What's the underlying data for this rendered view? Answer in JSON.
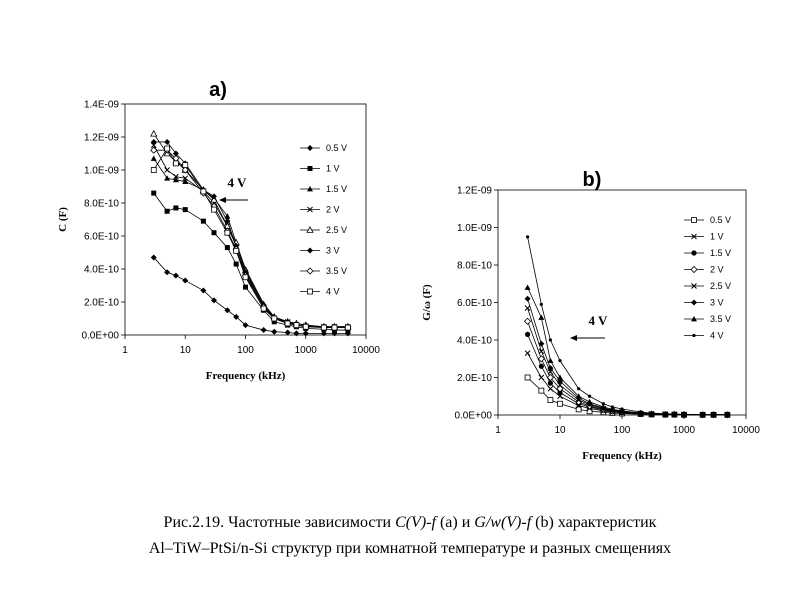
{
  "chart_data": [
    {
      "type": "line",
      "panel_label": "a)",
      "xlabel": "Frequency (kHz)",
      "ylabel": "C (F)",
      "x_scale": "log",
      "xlim": [
        1,
        10000
      ],
      "ylim": [
        0,
        1.4e-09
      ],
      "x_ticks": [
        "1",
        "10",
        "100",
        "1000",
        "10000"
      ],
      "y_ticks": [
        "0.0E+00",
        "2.0E-10",
        "4.0E-10",
        "6.0E-10",
        "8.0E-10",
        "1.0E-09",
        "1.2E-09",
        "1.4E-09"
      ],
      "annotation": "4 V",
      "legend_position": "right",
      "x": [
        3,
        5,
        7,
        10,
        20,
        30,
        50,
        70,
        100,
        200,
        300,
        500,
        700,
        1000,
        2000,
        3000,
        5000
      ],
      "series": [
        {
          "name": "0.5 V",
          "marker": "diamond-filled",
          "values": [
            4.7e-10,
            3.8e-10,
            3.6e-10,
            3.3e-10,
            2.7e-10,
            2.1e-10,
            1.5e-10,
            1.1e-10,
            6e-11,
            3e-11,
            2e-11,
            1.5e-11,
            1e-11,
            1e-11,
            1e-11,
            1e-11,
            1e-11
          ]
        },
        {
          "name": "1 V",
          "marker": "square-filled",
          "values": [
            8.6e-10,
            7.5e-10,
            7.7e-10,
            7.6e-10,
            6.9e-10,
            6.2e-10,
            5.3e-10,
            4.3e-10,
            2.9e-10,
            1.5e-10,
            8e-11,
            6e-11,
            5e-11,
            4e-11,
            3.5e-11,
            3e-11,
            3e-11
          ]
        },
        {
          "name": "1.5 V",
          "marker": "triangle-filled",
          "values": [
            1.07e-09,
            9.5e-10,
            9.4e-10,
            9.3e-10,
            8.8e-10,
            8.3e-10,
            7.2e-10,
            5.6e-10,
            4e-10,
            1.9e-10,
            1.1e-10,
            8e-11,
            7e-11,
            6e-11,
            5e-11,
            5e-11,
            5e-11
          ]
        },
        {
          "name": "2 V",
          "marker": "x",
          "values": [
            1.15e-09,
            1e-09,
            9.6e-10,
            9.5e-10,
            8.7e-10,
            8e-10,
            6.6e-10,
            5.4e-10,
            3.7e-10,
            1.7e-10,
            1e-10,
            8e-11,
            6e-11,
            5.5e-11,
            5e-11,
            5e-11,
            5e-11
          ]
        },
        {
          "name": "2.5 V",
          "marker": "triangle-open",
          "values": [
            1.22e-09,
            1.1e-09,
            1.05e-09,
            1e-09,
            8.8e-10,
            8.2e-10,
            6.6e-10,
            5.6e-10,
            3.9e-10,
            1.8e-10,
            1.1e-10,
            8e-11,
            7e-11,
            6e-11,
            5e-11,
            5e-11,
            5e-11
          ]
        },
        {
          "name": "3 V",
          "marker": "diamond-filled",
          "values": [
            1.17e-09,
            1.17e-09,
            1.1e-09,
            1.04e-09,
            8.8e-10,
            8.4e-10,
            6.9e-10,
            5.4e-10,
            3.8e-10,
            1.8e-10,
            1e-10,
            8e-11,
            6e-11,
            5.5e-11,
            5e-11,
            5e-11,
            5e-11
          ]
        },
        {
          "name": "3.5 V",
          "marker": "diamond-open",
          "values": [
            1.12e-09,
            1.12e-09,
            1.07e-09,
            1e-09,
            8.6e-10,
            7.8e-10,
            6.3e-10,
            5.2e-10,
            3.6e-10,
            1.7e-10,
            1e-10,
            7e-11,
            6e-11,
            5e-11,
            5e-11,
            5e-11,
            5e-11
          ]
        },
        {
          "name": "4 V",
          "marker": "square-open",
          "values": [
            1e-09,
            1.13e-09,
            1.04e-09,
            1.03e-09,
            8.7e-10,
            7.6e-10,
            6.2e-10,
            5.1e-10,
            3.5e-10,
            1.6e-10,
            1e-10,
            7e-11,
            6e-11,
            5e-11,
            4.5e-11,
            4.5e-11,
            4.5e-11
          ]
        }
      ]
    },
    {
      "type": "line",
      "panel_label": "b)",
      "xlabel": "Frequency (kHz)",
      "ylabel": "G/ω (F)",
      "x_scale": "log",
      "xlim": [
        1,
        10000
      ],
      "ylim": [
        0,
        1.2e-09
      ],
      "x_ticks": [
        "1",
        "10",
        "100",
        "1000",
        "10000"
      ],
      "y_ticks": [
        "0.0E+00",
        "2.0E-10",
        "4.0E-10",
        "6.0E-10",
        "8.0E-10",
        "1.0E-09",
        "1.2E-09"
      ],
      "annotation": "4 V",
      "legend_position": "right",
      "x": [
        3,
        5,
        7,
        10,
        20,
        30,
        50,
        70,
        100,
        200,
        300,
        500,
        700,
        1000,
        2000,
        3000,
        5000
      ],
      "series": [
        {
          "name": "0.5 V",
          "marker": "square-open",
          "values": [
            2e-10,
            1.3e-10,
            8e-11,
            6e-11,
            3e-11,
            2e-11,
            1.5e-11,
            1e-11,
            8e-12,
            5e-12,
            3e-12,
            2e-12,
            2e-12,
            1e-12,
            1e-12,
            1e-12,
            1e-12
          ]
        },
        {
          "name": "1 V",
          "marker": "x",
          "values": [
            3.3e-10,
            2e-10,
            1.4e-10,
            1e-10,
            5e-11,
            3.5e-11,
            2.2e-11,
            1.6e-11,
            1.2e-11,
            6e-12,
            4e-12,
            3e-12,
            2e-12,
            2e-12,
            1e-12,
            1e-12,
            1e-12
          ]
        },
        {
          "name": "1.5 V",
          "marker": "circle-filled",
          "values": [
            4.3e-10,
            2.6e-10,
            1.7e-10,
            1.2e-10,
            6e-11,
            4.3e-11,
            2.6e-11,
            1.8e-11,
            1.3e-11,
            7e-12,
            5e-12,
            3e-12,
            2e-12,
            2e-12,
            1e-12,
            1e-12,
            1e-12
          ]
        },
        {
          "name": "2 V",
          "marker": "diamond-open",
          "values": [
            5e-10,
            3e-10,
            2e-10,
            1.4e-10,
            7e-11,
            4.8e-11,
            3e-11,
            2e-11,
            1.5e-11,
            8e-12,
            5e-12,
            3e-12,
            3e-12,
            2e-12,
            1e-12,
            1e-12,
            1e-12
          ]
        },
        {
          "name": "2.5 V",
          "marker": "x",
          "values": [
            5.7e-10,
            3.4e-10,
            2.3e-10,
            1.6e-10,
            8e-11,
            5.5e-11,
            3.4e-11,
            2.3e-11,
            1.7e-11,
            9e-12,
            6e-12,
            4e-12,
            3e-12,
            2e-12,
            1e-12,
            1e-12,
            1e-12
          ]
        },
        {
          "name": "3 V",
          "marker": "diamond-filled",
          "values": [
            6.2e-10,
            3.8e-10,
            2.5e-10,
            1.8e-10,
            9e-11,
            6e-11,
            3.7e-11,
            2.6e-11,
            1.9e-11,
            1e-11,
            6e-12,
            4e-12,
            3e-12,
            2e-12,
            1e-12,
            1e-12,
            1e-12
          ]
        },
        {
          "name": "3.5 V",
          "marker": "triangle-filled",
          "values": [
            6.8e-10,
            5.2e-10,
            2.9e-10,
            2e-10,
            1e-10,
            7e-11,
            4.3e-11,
            3e-11,
            2.2e-11,
            1.1e-11,
            7e-12,
            5e-12,
            3e-12,
            2e-12,
            1e-12,
            1e-12,
            1e-12
          ]
        },
        {
          "name": "4 V",
          "marker": "dot",
          "values": [
            9.5e-10,
            5.9e-10,
            4e-10,
            2.9e-10,
            1.4e-10,
            1e-10,
            6e-11,
            4.3e-11,
            3.2e-11,
            1.6e-11,
            1e-11,
            7e-12,
            5e-12,
            4e-12,
            2e-12,
            1e-12,
            1e-12
          ]
        }
      ]
    }
  ],
  "caption": {
    "prefix": "Рис.2.19. Частотные зависимости ",
    "cv": "C(V)-f",
    "mid1": " (a) и ",
    "gw": "G/w(V)-f",
    "suffix": " (b) характеристик",
    "line2": "Al–TiW–PtSi/n-Si структур при комнатной температуре и разных смещениях"
  }
}
